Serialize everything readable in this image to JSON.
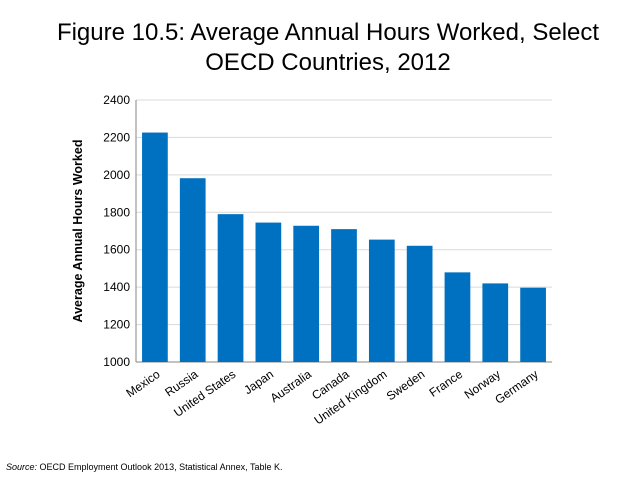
{
  "title_line1": "Figure 10.5: Average Annual Hours Worked, Select",
  "title_line2": "OECD Countries, 2012",
  "source_label": "Source:",
  "source_text": " OECD Employment Outlook 2013, Statistical Annex, Table K.",
  "colors": {
    "bar": "#0070c0",
    "grid": "#d9d9d9",
    "axis": "#868686"
  },
  "chart_data": {
    "type": "bar",
    "title": "Figure 10.5: Average Annual Hours Worked, Select OECD Countries, 2012",
    "xlabel": "",
    "ylabel": "Average Annual Hours Worked",
    "ylim": [
      1000,
      2400
    ],
    "yticks": [
      1000,
      1200,
      1400,
      1600,
      1800,
      2000,
      2200,
      2400
    ],
    "grid": true,
    "categories": [
      "Mexico",
      "Russia",
      "United States",
      "Japan",
      "Australia",
      "Canada",
      "United Kingdom",
      "Sweden",
      "France",
      "Norway",
      "Germany"
    ],
    "values": [
      2226,
      1982,
      1790,
      1745,
      1728,
      1710,
      1654,
      1621,
      1479,
      1420,
      1397
    ]
  }
}
